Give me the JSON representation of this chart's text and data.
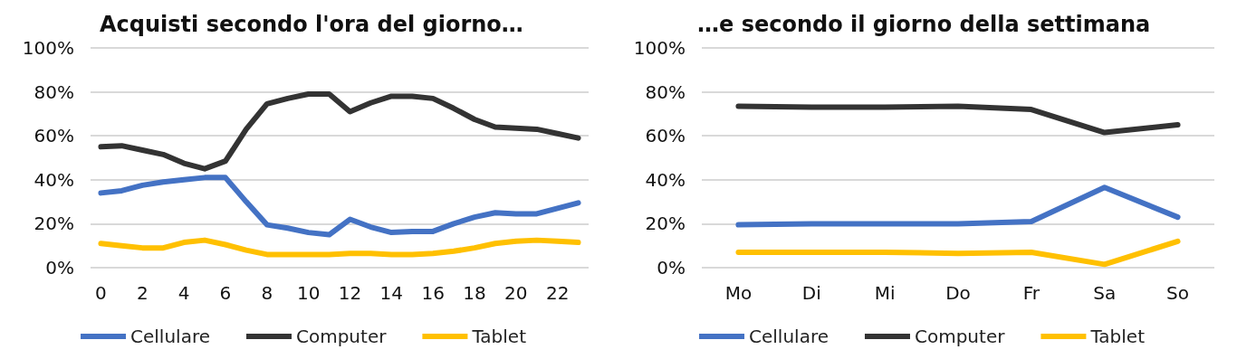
{
  "chart_data": [
    {
      "type": "line",
      "title": "Acquisti secondo l'ora del giorno…",
      "categories": [
        "0",
        null,
        "2",
        null,
        "4",
        null,
        "6",
        null,
        "8",
        null,
        "10",
        null,
        "12",
        null,
        "14",
        null,
        "16",
        null,
        "18",
        null,
        "20",
        null,
        "22",
        null
      ],
      "series": [
        {
          "name": "Cellulare",
          "color": "#4472c4",
          "values": [
            34,
            35,
            37.5,
            39,
            40,
            41,
            41,
            30,
            19.5,
            18,
            16,
            15,
            22,
            18.5,
            16,
            16.5,
            16.5,
            20,
            23,
            25,
            24.5,
            24.5,
            27,
            29.5
          ]
        },
        {
          "name": "Computer",
          "color": "#333333",
          "values": [
            55,
            55.5,
            53.5,
            51.5,
            47.5,
            45,
            48.5,
            63,
            74.5,
            77,
            79,
            79,
            71,
            75,
            78,
            78,
            77,
            72.5,
            67.5,
            64,
            63.5,
            63,
            61,
            59
          ]
        },
        {
          "name": "Tablet",
          "color": "#ffc000",
          "values": [
            11,
            10,
            9,
            9,
            11.5,
            12.5,
            10.5,
            8,
            6,
            6,
            6,
            6,
            6.5,
            6.5,
            6,
            6,
            6.5,
            7.5,
            9,
            11,
            12,
            12.5,
            12,
            11.5
          ]
        }
      ],
      "ylim": [
        0,
        100
      ],
      "yticks": [
        {
          "value": 0,
          "label": "0%"
        },
        {
          "value": 20,
          "label": "20%"
        },
        {
          "value": 40,
          "label": "40%"
        },
        {
          "value": 60,
          "label": "60%"
        },
        {
          "value": 80,
          "label": "80%"
        },
        {
          "value": 100,
          "label": "100%"
        }
      ],
      "grid": "y",
      "legend": "bottom",
      "marker": "none",
      "line_style": "solid"
    },
    {
      "type": "line",
      "title": "…e secondo il giorno della settimana",
      "categories": [
        "Mo",
        "Di",
        "Mi",
        "Do",
        "Fr",
        "Sa",
        "So"
      ],
      "series": [
        {
          "name": "Cellulare",
          "color": "#4472c4",
          "values": [
            19.5,
            20,
            20,
            20,
            21,
            36.5,
            23
          ]
        },
        {
          "name": "Computer",
          "color": "#333333",
          "values": [
            73.5,
            73,
            73,
            73.5,
            72,
            61.5,
            65
          ]
        },
        {
          "name": "Tablet",
          "color": "#ffc000",
          "values": [
            7,
            7,
            7,
            6.5,
            7,
            1.5,
            12
          ]
        }
      ],
      "ylim": [
        0,
        100
      ],
      "yticks": [
        {
          "value": 0,
          "label": "0%"
        },
        {
          "value": 20,
          "label": "20%"
        },
        {
          "value": 40,
          "label": "40%"
        },
        {
          "value": 60,
          "label": "60%"
        },
        {
          "value": 80,
          "label": "80%"
        },
        {
          "value": 100,
          "label": "100%"
        }
      ],
      "grid": "y",
      "legend": "bottom",
      "marker": "none",
      "line_style": "solid"
    }
  ]
}
